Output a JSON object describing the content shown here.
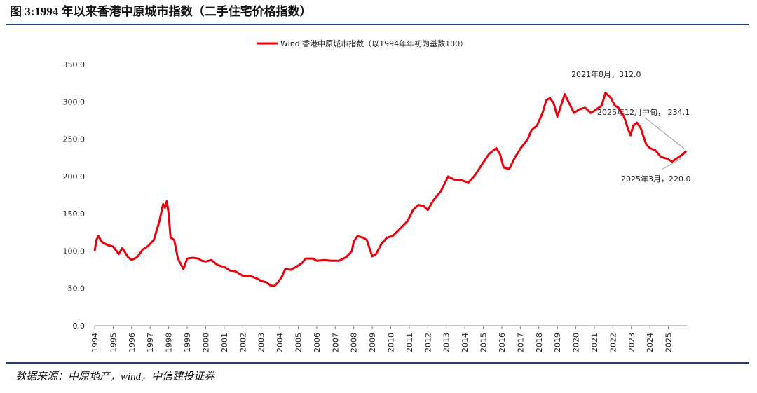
{
  "chart_data": {
    "type": "line",
    "title": "图 3:1994 年以来香港中原城市指数（二手住宅价格指数）",
    "source": "数据来源：中原地产，wind，中信建投证券",
    "x": [
      1994.0,
      1994.1,
      1994.2,
      1994.4,
      1994.7,
      1995.0,
      1995.3,
      1995.5,
      1995.8,
      1996.0,
      1996.3,
      1996.6,
      1996.9,
      1997.2,
      1997.5,
      1997.7,
      1997.8,
      1997.9,
      1998.0,
      1998.1,
      1998.3,
      1998.5,
      1998.8,
      1999.0,
      1999.3,
      1999.6,
      1999.8,
      2000.0,
      2000.3,
      2000.6,
      2000.8,
      2001.0,
      2001.3,
      2001.6,
      2002.0,
      2002.4,
      2002.8,
      2003.0,
      2003.3,
      2003.5,
      2003.7,
      2003.9,
      2004.1,
      2004.3,
      2004.6,
      2004.9,
      2005.2,
      2005.4,
      2005.8,
      2006.0,
      2006.4,
      2006.8,
      2007.2,
      2007.6,
      2007.9,
      2008.0,
      2008.2,
      2008.5,
      2008.7,
      2008.9,
      2009.0,
      2009.2,
      2009.5,
      2009.8,
      2010.1,
      2010.5,
      2010.9,
      2011.2,
      2011.5,
      2011.8,
      2012.0,
      2012.3,
      2012.7,
      2012.9,
      2013.1,
      2013.4,
      2013.8,
      2014.2,
      2014.5,
      2014.9,
      2015.3,
      2015.7,
      2015.9,
      2016.1,
      2016.4,
      2016.7,
      2017.0,
      2017.4,
      2017.6,
      2017.9,
      2018.2,
      2018.4,
      2018.6,
      2018.8,
      2019.0,
      2019.2,
      2019.4,
      2019.7,
      2019.9,
      2020.2,
      2020.5,
      2020.8,
      2021.0,
      2021.4,
      2021.6,
      2021.9,
      2022.1,
      2022.3,
      2022.6,
      2022.8,
      2022.95,
      2023.1,
      2023.3,
      2023.5,
      2023.8,
      2024.0,
      2024.3,
      2024.6,
      2024.9,
      2025.2,
      2025.5,
      2025.8,
      2025.96
    ],
    "series": [
      {
        "name": "Wind 香港中原城市指数（以1994年年初为基数100）",
        "color": "#e8000b",
        "values": [
          100,
          115,
          120,
          112,
          108,
          106,
          96,
          104,
          92,
          88,
          92,
          102,
          107,
          115,
          140,
          163,
          158,
          167,
          150,
          118,
          115,
          90,
          76,
          90,
          91,
          90,
          87,
          86,
          88,
          82,
          80,
          79,
          74,
          73,
          67,
          67,
          63,
          60,
          58,
          54,
          53,
          58,
          65,
          76,
          75,
          79,
          84,
          90,
          90,
          87,
          88,
          87,
          87,
          92,
          100,
          113,
          120,
          118,
          115,
          100,
          93,
          96,
          110,
          118,
          120,
          130,
          140,
          155,
          162,
          160,
          155,
          168,
          180,
          190,
          200,
          196,
          195,
          192,
          200,
          215,
          230,
          238,
          230,
          212,
          210,
          225,
          237,
          250,
          262,
          268,
          285,
          302,
          305,
          298,
          280,
          295,
          310,
          295,
          285,
          290,
          292,
          285,
          288,
          295,
          312,
          305,
          295,
          292,
          280,
          265,
          255,
          268,
          272,
          265,
          243,
          238,
          235,
          226,
          224,
          220,
          225,
          230,
          234.1
        ]
      }
    ],
    "xlim": [
      1994,
      2026
    ],
    "xticks": [
      1994,
      1995,
      1996,
      1997,
      1998,
      1999,
      2000,
      2001,
      2002,
      2003,
      2004,
      2005,
      2006,
      2007,
      2008,
      2009,
      2010,
      2011,
      2012,
      2013,
      2014,
      2015,
      2016,
      2017,
      2018,
      2019,
      2020,
      2021,
      2022,
      2023,
      2024,
      2025
    ],
    "ylim": [
      0,
      350
    ],
    "yticks": [
      {
        "value": 0,
        "label": "0.0"
      },
      {
        "value": 50,
        "label": "50.0"
      },
      {
        "value": 100,
        "label": "100.0"
      },
      {
        "value": 150,
        "label": "150.0"
      },
      {
        "value": 200,
        "label": "200.0"
      },
      {
        "value": 250,
        "label": "250.0"
      },
      {
        "value": 300,
        "label": "300.0"
      },
      {
        "value": 350,
        "label": "350.0"
      }
    ],
    "annotations": [
      "2021年8月，312.0",
      "2025年12月中旬， 234.1",
      "2025年3月，220.0"
    ]
  }
}
